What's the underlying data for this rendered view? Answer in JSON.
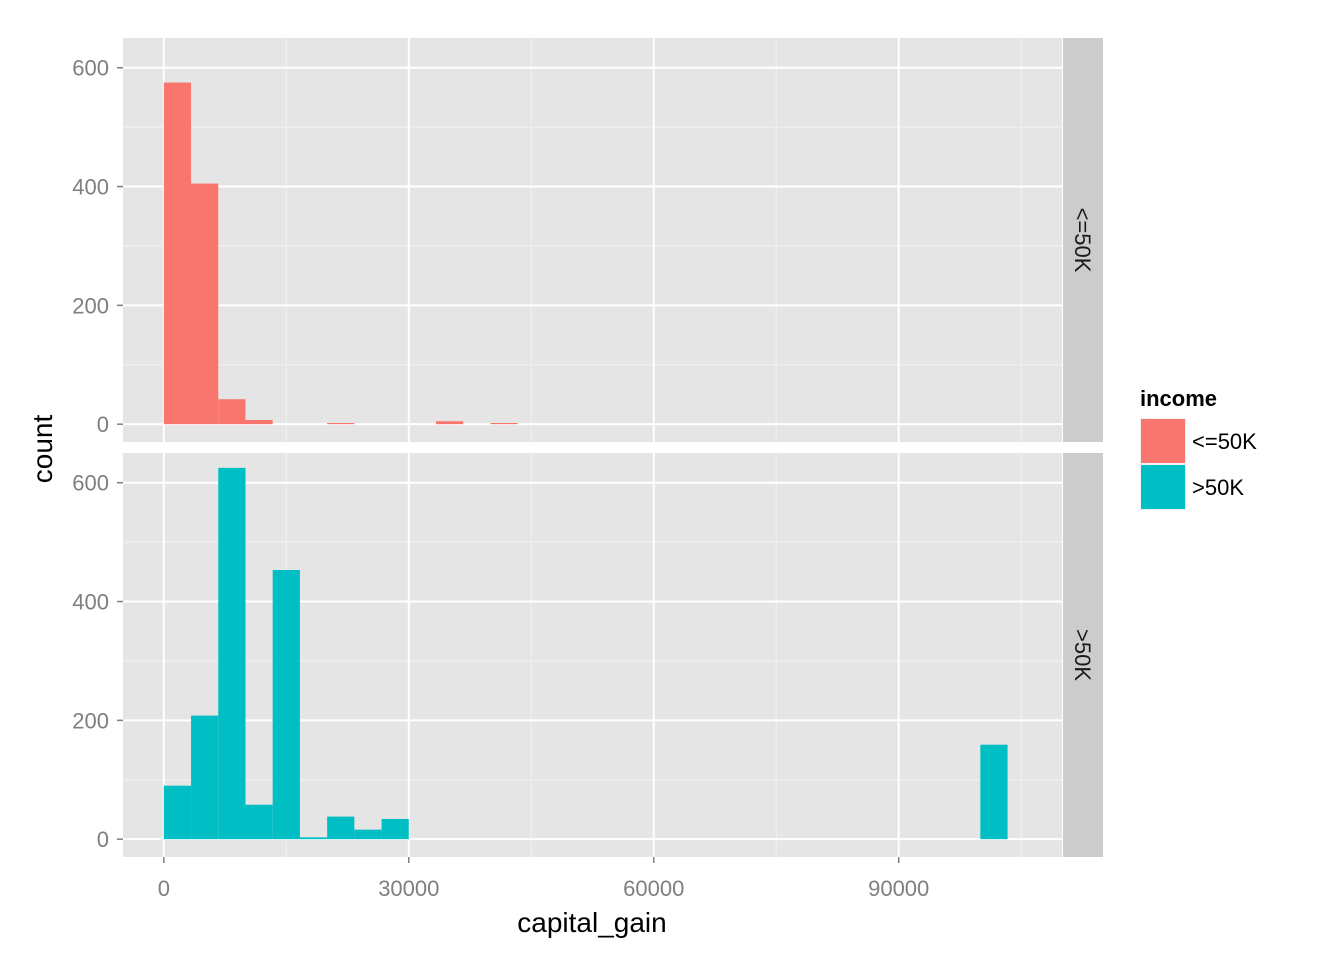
{
  "chart_data": {
    "type": "bar",
    "subtype": "faceted-histogram",
    "title": "",
    "xlabel": "capital_gain",
    "ylabel": "count",
    "xlim": [
      -5000,
      110000
    ],
    "ylim": [
      -30,
      650
    ],
    "x_ticks": [
      0,
      30000,
      60000,
      90000
    ],
    "x_tick_labels": [
      "0",
      "30000",
      "60000",
      "90000"
    ],
    "y_ticks": [
      0,
      200,
      400,
      600
    ],
    "y_tick_labels": [
      "0",
      "200",
      "400",
      "600"
    ],
    "bin_width": 3333,
    "grid": true,
    "background": "#e5e5e5",
    "legend": {
      "title": "income",
      "position": "right",
      "entries": [
        {
          "label": "<=50K",
          "color": "#f8766d"
        },
        {
          "label": ">50K",
          "color": "#00bfc4"
        }
      ]
    },
    "facets": [
      {
        "label": "<=50K",
        "color": "#f8766d",
        "bins": [
          {
            "x0": 0,
            "count": 575
          },
          {
            "x0": 3333,
            "count": 405
          },
          {
            "x0": 6667,
            "count": 42
          },
          {
            "x0": 10000,
            "count": 7
          },
          {
            "x0": 20000,
            "count": 2
          },
          {
            "x0": 33333,
            "count": 5
          },
          {
            "x0": 40000,
            "count": 2
          }
        ]
      },
      {
        "label": ">50K",
        "color": "#00bfc4",
        "bins": [
          {
            "x0": 0,
            "count": 90
          },
          {
            "x0": 3333,
            "count": 208
          },
          {
            "x0": 6667,
            "count": 625
          },
          {
            "x0": 10000,
            "count": 58
          },
          {
            "x0": 13333,
            "count": 453
          },
          {
            "x0": 16667,
            "count": 3
          },
          {
            "x0": 20000,
            "count": 38
          },
          {
            "x0": 23333,
            "count": 16
          },
          {
            "x0": 26667,
            "count": 34
          },
          {
            "x0": 100000,
            "count": 159
          }
        ]
      }
    ]
  }
}
